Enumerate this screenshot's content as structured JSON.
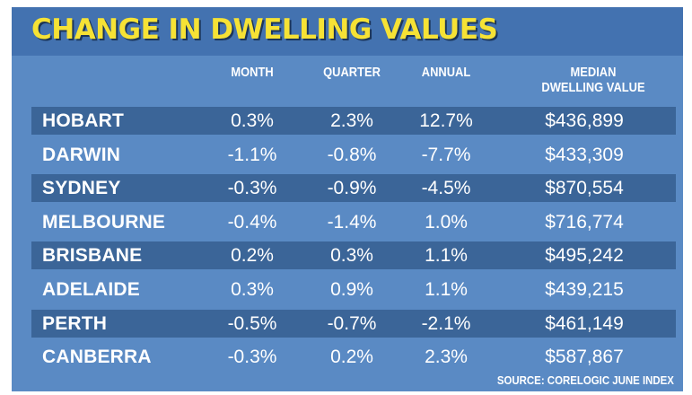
{
  "chart_data": {
    "type": "table",
    "title": "CHANGE IN DWELLING VALUES",
    "columns": [
      "MONTH",
      "QUARTER",
      "ANNUAL",
      "MEDIAN DWELLING VALUE"
    ],
    "rows": [
      {
        "city": "HOBART",
        "month": "0.3%",
        "quarter": "2.3%",
        "annual": "12.7%",
        "median": "$436,899"
      },
      {
        "city": "DARWIN",
        "month": "-1.1%",
        "quarter": "-0.8%",
        "annual": "-7.7%",
        "median": "$433,309"
      },
      {
        "city": "SYDNEY",
        "month": "-0.3%",
        "quarter": "-0.9%",
        "annual": "-4.5%",
        "median": "$870,554"
      },
      {
        "city": "MELBOURNE",
        "month": "-0.4%",
        "quarter": "-1.4%",
        "annual": "1.0%",
        "median": "$716,774"
      },
      {
        "city": "BRISBANE",
        "month": "0.2%",
        "quarter": "0.3%",
        "annual": "1.1%",
        "median": "$495,242"
      },
      {
        "city": "ADELAIDE",
        "month": "0.3%",
        "quarter": "0.9%",
        "annual": "1.1%",
        "median": "$439,215"
      },
      {
        "city": "PERTH",
        "month": "-0.5%",
        "quarter": "-0.7%",
        "annual": "-2.1%",
        "median": "$461,149"
      },
      {
        "city": "CANBERRA",
        "month": "-0.3%",
        "quarter": "0.2%",
        "annual": "2.3%",
        "median": "$587,867"
      }
    ],
    "source": "SOURCE: CORELOGIC JUNE INDEX"
  },
  "colors": {
    "panel": "#5a8ac4",
    "title_bar": "#4372b0",
    "row_shade": "#3b6598",
    "title_text": "#f6e235",
    "text": "#ffffff"
  }
}
